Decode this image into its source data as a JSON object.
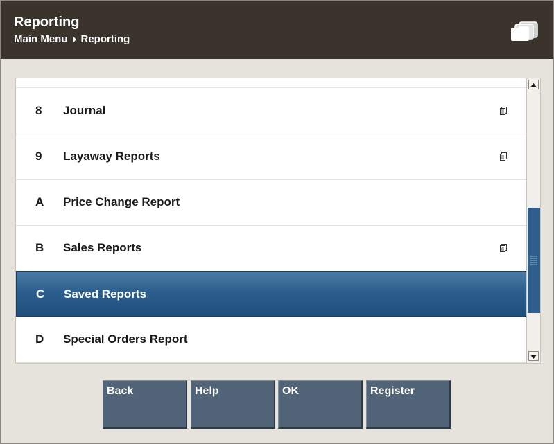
{
  "header": {
    "title": "Reporting",
    "breadcrumb": [
      "Main Menu",
      "Reporting"
    ],
    "icon": "folders-icon"
  },
  "menu": {
    "items": [
      {
        "key": "8",
        "label": "Journal",
        "has_doc_icon": true,
        "selected": false
      },
      {
        "key": "9",
        "label": "Layaway Reports",
        "has_doc_icon": true,
        "selected": false
      },
      {
        "key": "A",
        "label": "Price Change Report",
        "has_doc_icon": false,
        "selected": false
      },
      {
        "key": "B",
        "label": "Sales Reports",
        "has_doc_icon": true,
        "selected": false
      },
      {
        "key": "C",
        "label": "Saved Reports",
        "has_doc_icon": false,
        "selected": true
      },
      {
        "key": "D",
        "label": "Special Orders Report",
        "has_doc_icon": false,
        "selected": false
      }
    ]
  },
  "buttons": {
    "back": "Back",
    "help": "Help",
    "ok": "OK",
    "register": "Register"
  },
  "colors": {
    "header_bg": "#3b342c",
    "selected_row": "#2d5f8e",
    "button_bg": "#526478",
    "page_bg": "#e6e2dc"
  }
}
